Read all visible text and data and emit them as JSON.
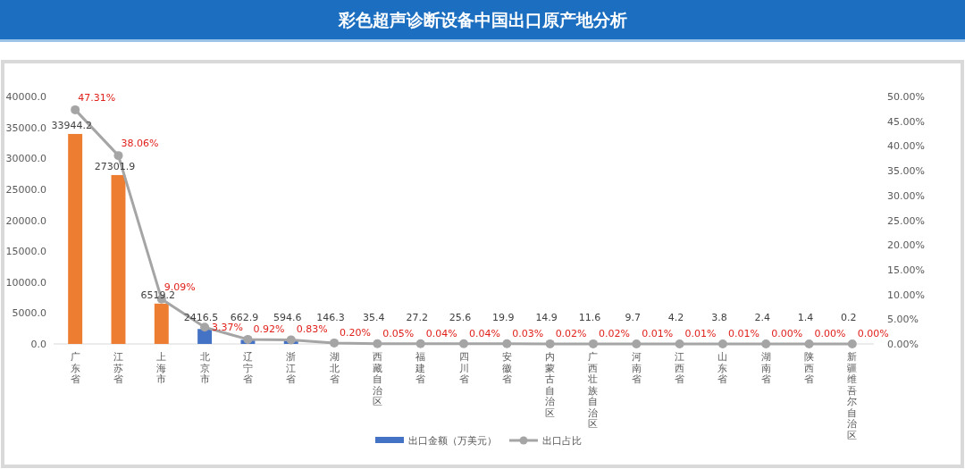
{
  "chart_data": {
    "type": "bar",
    "title": "彩色超声诊断设备中国出口原产地分析",
    "categories": [
      "广东省",
      "江苏省",
      "上海市",
      "北京市",
      "辽宁省",
      "浙江省",
      "湖北省",
      "西藏自治区",
      "福建省",
      "四川省",
      "安徽省",
      "内蒙古自治区",
      "广西壮族自治区",
      "河南省",
      "江西省",
      "山东省",
      "湖南省",
      "陕西省",
      "新疆维吾尔自治区"
    ],
    "series": [
      {
        "name": "出口金额（万美元）",
        "color": "#4472c4",
        "colors": [
          "#ed7d31",
          "#ed7d31",
          "#ed7d31",
          "#4472c4",
          "#4472c4",
          "#4472c4",
          "#4472c4",
          "#4472c4",
          "#4472c4",
          "#4472c4",
          "#4472c4",
          "#4472c4",
          "#4472c4",
          "#4472c4",
          "#4472c4",
          "#4472c4",
          "#4472c4",
          "#4472c4",
          "#4472c4"
        ],
        "values": [
          33944.2,
          27301.9,
          6519.2,
          2416.5,
          662.9,
          594.6,
          146.3,
          35.4,
          27.2,
          25.6,
          19.9,
          14.9,
          11.6,
          9.7,
          4.2,
          3.8,
          2.4,
          1.4,
          0.2
        ],
        "value_labels": [
          "33944.2",
          "27301.9",
          "6519.2",
          "2416.5",
          "662.9",
          "594.6",
          "146.3",
          "35.4",
          "27.2",
          "25.6",
          "19.9",
          "14.9",
          "11.6",
          "9.7",
          "4.2",
          "3.8",
          "2.4",
          "1.4",
          "0.2"
        ]
      },
      {
        "name": "出口占比",
        "type": "line",
        "axis": "y2",
        "color": "#a5a5a5",
        "marker": "circle",
        "values": [
          47.31,
          38.06,
          9.09,
          3.37,
          0.92,
          0.83,
          0.2,
          0.05,
          0.04,
          0.04,
          0.03,
          0.02,
          0.02,
          0.01,
          0.01,
          0.01,
          0.0,
          0.0,
          0.0
        ],
        "value_labels": [
          "47.31%",
          "38.06%",
          "9.09%",
          "3.37%",
          "0.92%",
          "0.83%",
          "0.20%",
          "0.05%",
          "0.04%",
          "0.04%",
          "0.03%",
          "0.02%",
          "0.02%",
          "0.01%",
          "0.01%",
          "0.01%",
          "0.00%",
          "0.00%",
          "0.00%"
        ]
      }
    ],
    "ylim": [
      0,
      40000
    ],
    "yticks": [
      {
        "value": 0,
        "label": "0.0"
      },
      {
        "value": 5000,
        "label": "5000.0"
      },
      {
        "value": 10000,
        "label": "10000.0"
      },
      {
        "value": 15000,
        "label": "15000.0"
      },
      {
        "value": 20000,
        "label": "20000.0"
      },
      {
        "value": 25000,
        "label": "25000.0"
      },
      {
        "value": 30000,
        "label": "30000.0"
      },
      {
        "value": 35000,
        "label": "35000.0"
      },
      {
        "value": 40000,
        "label": "40000.0"
      }
    ],
    "y2lim": [
      0,
      50
    ],
    "y2ticks": [
      {
        "value": 0,
        "label": "0.00%"
      },
      {
        "value": 5,
        "label": "5.00%"
      },
      {
        "value": 10,
        "label": "10.00%"
      },
      {
        "value": 15,
        "label": "15.00%"
      },
      {
        "value": 20,
        "label": "20.00%"
      },
      {
        "value": 25,
        "label": "25.00%"
      },
      {
        "value": 30,
        "label": "30.00%"
      },
      {
        "value": 35,
        "label": "35.00%"
      },
      {
        "value": 40,
        "label": "40.00%"
      },
      {
        "value": 45,
        "label": "45.00%"
      },
      {
        "value": 50,
        "label": "50.00%"
      }
    ],
    "grid": false,
    "legend": "bottom"
  }
}
